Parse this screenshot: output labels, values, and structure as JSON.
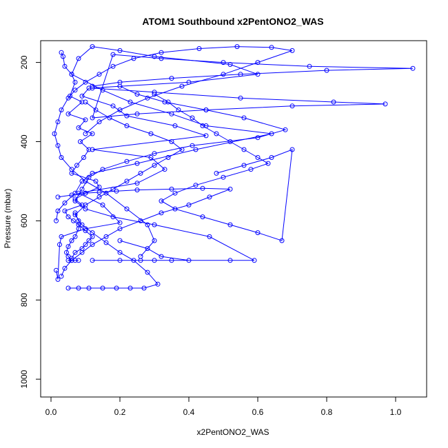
{
  "chart_data": {
    "type": "scatter",
    "title": "ATOM1 Southbound x2PentONO2_WAS",
    "xlabel": "x2PentONO2_WAS",
    "ylabel": "Pressure (mbar)",
    "xlim": [
      -0.03,
      1.09
    ],
    "ylim": [
      1045,
      145
    ],
    "y_reversed": true,
    "x_ticks": [
      0.0,
      0.2,
      0.4,
      0.6,
      0.8,
      1.0
    ],
    "x_tick_labels": [
      "0.0",
      "0.2",
      "0.4",
      "0.6",
      "0.8",
      "1.0"
    ],
    "y_ticks": [
      200,
      400,
      600,
      800,
      1000
    ],
    "y_tick_labels": [
      "200",
      "400",
      "600",
      "800",
      "1000"
    ],
    "grid": false,
    "color": "#0000ff",
    "series": [
      {
        "x": [
          0.03,
          0.035,
          0.04,
          0.06,
          0.07,
          0.055,
          0.09,
          0.05,
          0.1,
          0.08,
          0.12,
          0.085,
          0.11,
          0.095,
          0.075,
          0.06,
          0.13,
          0.14,
          0.1,
          0.07,
          0.09,
          0.04,
          0.05,
          0.065,
          0.08,
          0.1,
          0.12,
          0.11,
          0.1,
          0.09,
          0.07,
          0.06,
          0.05,
          0.08,
          0.07,
          0.06,
          0.05,
          0.045,
          0.05,
          0.06,
          0.07,
          0.08,
          0.08,
          0.07
        ],
        "y": [
          175,
          185,
          210,
          230,
          250,
          285,
          300,
          330,
          345,
          365,
          380,
          400,
          420,
          440,
          460,
          480,
          500,
          515,
          530,
          545,
          560,
          575,
          590,
          600,
          610,
          625,
          640,
          650,
          660,
          670,
          680,
          695,
          700,
          700,
          700,
          700,
          690,
          680,
          665,
          650,
          640,
          620,
          600,
          580
        ]
      },
      {
        "x": [
          0.015,
          0.02,
          0.025,
          0.03,
          0.1,
          0.2,
          0.15,
          0.08,
          0.25,
          0.33,
          0.29,
          0.12,
          0.45,
          0.36,
          0.22,
          0.18,
          0.09,
          0.11,
          0.4,
          0.6,
          0.52,
          0.3,
          0.2,
          0.12,
          0.08,
          0.06,
          0.15,
          0.23,
          0.35,
          0.45,
          0.64,
          0.42,
          0.25,
          0.12,
          0.09,
          0.07,
          0.04,
          0.02,
          0.015
        ],
        "y": [
          725,
          748,
          660,
          640,
          620,
          605,
          560,
          530,
          505,
          470,
          440,
          420,
          385,
          360,
          335,
          310,
          285,
          265,
          250,
          230,
          205,
          185,
          170,
          160,
          190,
          230,
          270,
          300,
          330,
          360,
          380,
          420,
          455,
          480,
          500,
          530,
          555,
          575,
          600
        ]
      },
      {
        "x": [
          0.05,
          0.08,
          0.11,
          0.15,
          0.19,
          0.23,
          0.27,
          0.31,
          0.28,
          0.24,
          0.2,
          0.16,
          0.12,
          0.09,
          0.07,
          0.1,
          0.14,
          0.18,
          0.22,
          0.26,
          0.3,
          0.34,
          0.38,
          0.35,
          0.29,
          0.22,
          0.17,
          0.13,
          0.1
        ],
        "y": [
          770,
          770,
          770,
          770,
          770,
          770,
          770,
          760,
          730,
          700,
          680,
          655,
          630,
          610,
          585,
          560,
          540,
          520,
          500,
          480,
          460,
          440,
          420,
          400,
          380,
          360,
          340,
          320,
          300
        ]
      },
      {
        "x": [
          0.2,
          0.28,
          0.32,
          0.4,
          0.3,
          0.2,
          0.12,
          0.26,
          0.35,
          0.52,
          0.59,
          0.46,
          0.3,
          0.18,
          0.1,
          0.07,
          0.09,
          0.11,
          0.15,
          0.22,
          0.3,
          0.41,
          0.6,
          0.68,
          0.56,
          0.45,
          0.33,
          0.25,
          0.2
        ],
        "y": [
          650,
          670,
          690,
          700,
          700,
          700,
          700,
          700,
          700,
          700,
          700,
          640,
          610,
          590,
          570,
          550,
          520,
          490,
          470,
          450,
          430,
          410,
          390,
          370,
          340,
          320,
          300,
          280,
          260
        ]
      },
      {
        "x": [
          0.26,
          0.3,
          0.28,
          0.22,
          0.16,
          0.1,
          0.06,
          0.03,
          0.02,
          0.01,
          0.02,
          0.03,
          0.05,
          0.07,
          0.1,
          0.14,
          0.18,
          0.24,
          0.32,
          0.43,
          0.54,
          0.64,
          0.7,
          0.6,
          0.5,
          0.38,
          0.28,
          0.2,
          0.14,
          0.1
        ],
        "y": [
          690,
          650,
          610,
          570,
          530,
          500,
          470,
          440,
          410,
          380,
          350,
          320,
          290,
          270,
          250,
          230,
          210,
          190,
          175,
          165,
          160,
          162,
          170,
          200,
          230,
          260,
          290,
          320,
          350,
          380
        ]
      },
      {
        "x": [
          0.3,
          0.34,
          0.37,
          0.41,
          0.44,
          0.48,
          0.52,
          0.56,
          0.6,
          0.63,
          0.58,
          0.5,
          0.42,
          0.36,
          0.32,
          0.36,
          0.44,
          0.52,
          0.6,
          0.67,
          0.7,
          0.64,
          0.56,
          0.48
        ],
        "y": [
          280,
          300,
          320,
          340,
          360,
          380,
          400,
          420,
          440,
          455,
          470,
          490,
          510,
          530,
          550,
          570,
          590,
          610,
          630,
          650,
          420,
          440,
          460,
          480
        ]
      },
      {
        "x": [
          0.12,
          0.3,
          0.55,
          0.82,
          0.97,
          0.7,
          0.45,
          0.25,
          0.12,
          0.18,
          0.32,
          0.5,
          0.75,
          1.05,
          0.8,
          0.55,
          0.35,
          0.2,
          0.12
        ],
        "y": [
          265,
          275,
          290,
          300,
          305,
          310,
          320,
          330,
          340,
          180,
          190,
          200,
          210,
          215,
          220,
          230,
          240,
          250,
          260
        ]
      },
      {
        "x": [
          0.02,
          0.06,
          0.1,
          0.14,
          0.19,
          0.25,
          0.35,
          0.44,
          0.52,
          0.46,
          0.4,
          0.32,
          0.26,
          0.2,
          0.16,
          0.12,
          0.09,
          0.06,
          0.04,
          0.03
        ],
        "y": [
          540,
          535,
          530,
          528,
          525,
          522,
          520,
          518,
          520,
          540,
          560,
          580,
          600,
          620,
          640,
          660,
          680,
          700,
          720,
          740
        ]
      }
    ]
  }
}
